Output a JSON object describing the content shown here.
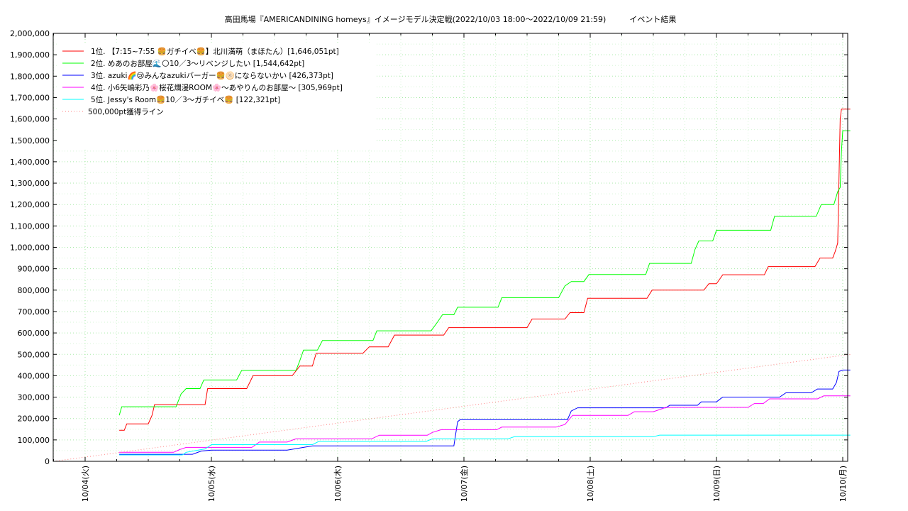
{
  "chart_data": {
    "type": "line",
    "title": "高田馬場『AMERICANDINING homeys』イメージモデル決定戦(2022/10/03 18:00～2022/10/09 21:59)　　　イベント結果",
    "xlabel": "",
    "ylabel": "",
    "x_ticks": [
      "10/04(火)",
      "10/05(水)",
      "10/06(木)",
      "10/07(金)",
      "10/08(土)",
      "10/09(日)",
      "10/10(月)"
    ],
    "y_ticks": [
      "0",
      "100,000",
      "200,000",
      "300,000",
      "400,000",
      "500,000",
      "600,000",
      "700,000",
      "800,000",
      "900,000",
      "1,000,000",
      "1,100,000",
      "1,200,000",
      "1,300,000",
      "1,400,000",
      "1,500,000",
      "1,600,000",
      "1,700,000",
      "1,800,000",
      "1,900,000",
      "2,000,000"
    ],
    "ylim": [
      0,
      2000000
    ],
    "grid": true,
    "legend_position": "top-left",
    "series": [
      {
        "name": "1位. 【7:15~7:55 🍔ガチイベ🍔】北川満萌（まほたん）[1,646,051pt]",
        "color": "#ff0000",
        "style": "solid",
        "points": [
          [
            0.27,
            145000
          ],
          [
            0.31,
            145000
          ],
          [
            0.33,
            175000
          ],
          [
            0.5,
            175000
          ],
          [
            0.53,
            215000
          ],
          [
            0.55,
            265000
          ],
          [
            0.95,
            265000
          ],
          [
            0.97,
            340000
          ],
          [
            1.28,
            340000
          ],
          [
            1.33,
            400000
          ],
          [
            1.64,
            400000
          ],
          [
            1.7,
            445000
          ],
          [
            1.8,
            445000
          ],
          [
            1.83,
            505000
          ],
          [
            2.2,
            505000
          ],
          [
            2.25,
            535000
          ],
          [
            2.4,
            535000
          ],
          [
            2.45,
            590000
          ],
          [
            2.84,
            590000
          ],
          [
            2.88,
            625000
          ],
          [
            3.5,
            625000
          ],
          [
            3.54,
            665000
          ],
          [
            3.8,
            665000
          ],
          [
            3.84,
            695000
          ],
          [
            3.95,
            695000
          ],
          [
            3.98,
            762000
          ],
          [
            4.25,
            762000
          ],
          [
            4.45,
            762000
          ],
          [
            4.49,
            800000
          ],
          [
            4.9,
            800000
          ],
          [
            4.94,
            830000
          ],
          [
            5.0,
            830000
          ],
          [
            5.05,
            872000
          ],
          [
            5.38,
            872000
          ],
          [
            5.41,
            910000
          ],
          [
            5.78,
            910000
          ],
          [
            5.82,
            950000
          ],
          [
            5.92,
            950000
          ],
          [
            5.94,
            980000
          ],
          [
            5.96,
            1020000
          ],
          [
            5.98,
            1600000
          ],
          [
            5.99,
            1646051
          ],
          [
            6.06,
            1646051
          ]
        ]
      },
      {
        "name": "2位. めあのお部屋🌊🌕10／3〜リベンジしたい [1,544,642pt]",
        "color": "#00ff00",
        "style": "solid",
        "points": [
          [
            0.27,
            215000
          ],
          [
            0.29,
            255000
          ],
          [
            0.72,
            255000
          ],
          [
            0.76,
            315000
          ],
          [
            0.8,
            340000
          ],
          [
            0.91,
            340000
          ],
          [
            0.94,
            380000
          ],
          [
            1.2,
            380000
          ],
          [
            1.24,
            425000
          ],
          [
            1.67,
            425000
          ],
          [
            1.7,
            470000
          ],
          [
            1.73,
            520000
          ],
          [
            1.84,
            520000
          ],
          [
            1.88,
            565000
          ],
          [
            2.28,
            565000
          ],
          [
            2.31,
            610000
          ],
          [
            2.74,
            610000
          ],
          [
            2.79,
            650000
          ],
          [
            2.83,
            685000
          ],
          [
            2.92,
            685000
          ],
          [
            2.95,
            720000
          ],
          [
            3.27,
            720000
          ],
          [
            3.3,
            765000
          ],
          [
            3.75,
            765000
          ],
          [
            3.8,
            820000
          ],
          [
            3.85,
            840000
          ],
          [
            3.95,
            840000
          ],
          [
            3.99,
            873000
          ],
          [
            4.44,
            873000
          ],
          [
            4.47,
            925000
          ],
          [
            4.8,
            925000
          ],
          [
            4.83,
            990000
          ],
          [
            4.86,
            1030000
          ],
          [
            4.97,
            1030000
          ],
          [
            5.0,
            1080000
          ],
          [
            5.43,
            1080000
          ],
          [
            5.46,
            1145000
          ],
          [
            5.79,
            1145000
          ],
          [
            5.83,
            1200000
          ],
          [
            5.93,
            1200000
          ],
          [
            5.96,
            1260000
          ],
          [
            5.98,
            1280000
          ],
          [
            5.99,
            1450000
          ],
          [
            6.0,
            1544642
          ],
          [
            6.06,
            1544642
          ]
        ]
      },
      {
        "name": "3位. azuki🌈😢みんなazukiバーガー🍔🫓にならないかい [426,373pt]",
        "color": "#0000ff",
        "style": "solid",
        "points": [
          [
            0.27,
            33000
          ],
          [
            0.85,
            33000
          ],
          [
            0.92,
            48000
          ],
          [
            1.0,
            52000
          ],
          [
            1.6,
            52000
          ],
          [
            1.8,
            72000
          ],
          [
            2.92,
            72000
          ],
          [
            2.95,
            185000
          ],
          [
            2.97,
            195000
          ],
          [
            3.82,
            195000
          ],
          [
            3.85,
            235000
          ],
          [
            3.9,
            250000
          ],
          [
            4.6,
            250000
          ],
          [
            4.63,
            262000
          ],
          [
            4.85,
            262000
          ],
          [
            4.88,
            278000
          ],
          [
            5.0,
            278000
          ],
          [
            5.05,
            300000
          ],
          [
            5.5,
            300000
          ],
          [
            5.55,
            320000
          ],
          [
            5.75,
            320000
          ],
          [
            5.8,
            338000
          ],
          [
            5.92,
            338000
          ],
          [
            5.95,
            368000
          ],
          [
            5.97,
            420000
          ],
          [
            6.0,
            426373
          ],
          [
            6.06,
            426373
          ]
        ]
      },
      {
        "name": "4位. 小6矢嶋彩乃🌸桜花爛漫ROOM🌸〜あやりんのお部屋〜 [305,969pt]",
        "color": "#ff00ff",
        "style": "solid",
        "points": [
          [
            0.27,
            42000
          ],
          [
            0.7,
            42000
          ],
          [
            0.75,
            55000
          ],
          [
            0.8,
            65000
          ],
          [
            1.32,
            65000
          ],
          [
            1.38,
            90000
          ],
          [
            1.6,
            90000
          ],
          [
            1.67,
            105000
          ],
          [
            2.27,
            105000
          ],
          [
            2.33,
            122000
          ],
          [
            2.71,
            122000
          ],
          [
            2.75,
            135000
          ],
          [
            2.82,
            148000
          ],
          [
            3.26,
            148000
          ],
          [
            3.3,
            160000
          ],
          [
            3.73,
            160000
          ],
          [
            3.8,
            172000
          ],
          [
            3.86,
            215000
          ],
          [
            4.3,
            215000
          ],
          [
            4.35,
            232000
          ],
          [
            4.5,
            232000
          ],
          [
            4.6,
            252000
          ],
          [
            5.25,
            252000
          ],
          [
            5.3,
            270000
          ],
          [
            5.37,
            270000
          ],
          [
            5.42,
            292000
          ],
          [
            5.8,
            292000
          ],
          [
            5.85,
            305969
          ],
          [
            6.06,
            305969
          ]
        ]
      },
      {
        "name": "5位. Jessy's Room🍔10／3〜ガチイベ🍔 [122,321pt]",
        "color": "#00ffff",
        "style": "solid",
        "points": [
          [
            0.27,
            30000
          ],
          [
            0.77,
            30000
          ],
          [
            0.8,
            42000
          ],
          [
            0.95,
            58000
          ],
          [
            1.0,
            78000
          ],
          [
            1.8,
            78000
          ],
          [
            1.85,
            93000
          ],
          [
            2.7,
            93000
          ],
          [
            2.75,
            105000
          ],
          [
            3.35,
            105000
          ],
          [
            3.4,
            115000
          ],
          [
            4.5,
            115000
          ],
          [
            4.55,
            122321
          ],
          [
            6.06,
            122321
          ]
        ]
      },
      {
        "name": "500,000pt獲得ライン",
        "color": "#ff8080",
        "style": "dotted",
        "points": [
          [
            -0.25,
            0
          ],
          [
            6.06,
            500000
          ]
        ]
      }
    ]
  }
}
